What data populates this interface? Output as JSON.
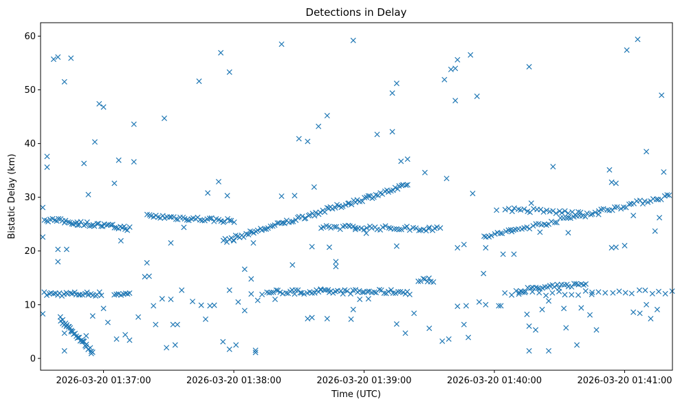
{
  "chart_data": {
    "type": "scatter",
    "title": "Detections in Delay",
    "xlabel": "Time (UTC)",
    "ylabel": "Bistatic Delay (km)",
    "marker": "x",
    "color": "#1f77b4",
    "xlim_seconds": [
      -29,
      262
    ],
    "ylim": [
      -2.2,
      62.5
    ],
    "x_ticks": [
      {
        "t": 0,
        "label": "2026-03-20 01:37:00"
      },
      {
        "t": 60,
        "label": "2026-03-20 01:38:00"
      },
      {
        "t": 120,
        "label": "2026-03-20 01:39:00"
      },
      {
        "t": 180,
        "label": "2026-03-20 01:40:00"
      },
      {
        "t": 240,
        "label": "2026-03-20 01:41:00"
      }
    ],
    "y_ticks": [
      0,
      10,
      20,
      30,
      40,
      50,
      60
    ],
    "x_unit": "seconds after 2026-03-20 01:37:00 UTC",
    "trend_segments": [
      {
        "name": "track-near-12km-a",
        "t0": -27,
        "t1": -1,
        "y0": 12.0,
        "y1": 12.0,
        "n": 28
      },
      {
        "name": "track-near-12km-b",
        "t0": 5,
        "t1": 12,
        "y0": 12.0,
        "y1": 12.0,
        "n": 8
      },
      {
        "name": "track-near-12km-c",
        "t0": 75,
        "t1": 140,
        "y0": 12.4,
        "y1": 12.4,
        "n": 60
      },
      {
        "name": "track-near-12km-d",
        "t0": 185,
        "t1": 262,
        "y0": 12.0,
        "y1": 12.4,
        "n": 26
      },
      {
        "name": "track-rising-13km",
        "t0": 190,
        "t1": 222,
        "y0": 12.6,
        "y1": 13.9,
        "n": 30
      },
      {
        "name": "track-14km",
        "t0": 145,
        "t1": 152,
        "y0": 14.6,
        "y1": 14.6,
        "n": 8
      },
      {
        "name": "track-falling",
        "t0": -20,
        "t1": -5,
        "y0": 7.4,
        "y1": 1.1,
        "n": 34
      },
      {
        "name": "track-26km-a",
        "t0": -27,
        "t1": 12,
        "y0": 25.9,
        "y1": 24.2,
        "n": 45
      },
      {
        "name": "track-26km-b",
        "t0": 20,
        "t1": 60,
        "y0": 26.5,
        "y1": 25.6,
        "n": 40
      },
      {
        "name": "track-rising-main",
        "t0": 55,
        "t1": 140,
        "y0": 21.8,
        "y1": 32.2,
        "n": 90
      },
      {
        "name": "track-24km",
        "t0": 100,
        "t1": 155,
        "y0": 24.5,
        "y1": 24.1,
        "n": 45
      },
      {
        "name": "track-rising-late",
        "t0": 175,
        "t1": 262,
        "y0": 22.6,
        "y1": 30.4,
        "n": 70
      },
      {
        "name": "track-27km",
        "t0": 185,
        "t1": 220,
        "y0": 27.8,
        "y1": 27.0,
        "n": 25
      }
    ],
    "scattered_points": [
      [
        -28,
        8.3
      ],
      [
        -28,
        22.6
      ],
      [
        -28,
        28.1
      ],
      [
        -26,
        37.6
      ],
      [
        -26,
        35.6
      ],
      [
        -23,
        55.7
      ],
      [
        -21,
        56.1
      ],
      [
        -18,
        51.5
      ],
      [
        -15,
        55.9
      ],
      [
        -21,
        20.3
      ],
      [
        -21,
        18.0
      ],
      [
        -18,
        4.7
      ],
      [
        -18,
        1.4
      ],
      [
        -9,
        36.3
      ],
      [
        -7,
        30.5
      ],
      [
        -4,
        40.3
      ],
      [
        -2,
        47.4
      ],
      [
        0,
        46.8
      ],
      [
        5,
        32.6
      ],
      [
        7,
        36.9
      ],
      [
        14,
        43.6
      ],
      [
        14,
        36.6
      ],
      [
        16,
        7.7
      ],
      [
        19,
        15.2
      ],
      [
        20,
        17.8
      ],
      [
        28,
        44.7
      ],
      [
        29,
        2.0
      ],
      [
        33,
        2.5
      ],
      [
        44,
        51.6
      ],
      [
        48,
        30.8
      ],
      [
        53,
        32.9
      ],
      [
        54,
        56.9
      ],
      [
        58,
        53.3
      ],
      [
        57,
        30.3
      ],
      [
        58,
        12.7
      ],
      [
        55,
        3.1
      ],
      [
        58,
        1.7
      ],
      [
        61,
        2.5
      ],
      [
        65,
        16.6
      ],
      [
        68,
        14.8
      ],
      [
        70,
        1.5
      ],
      [
        70,
        1.1
      ],
      [
        82,
        58.5
      ],
      [
        82,
        30.2
      ],
      [
        87,
        17.4
      ],
      [
        90,
        40.9
      ],
      [
        94,
        40.4
      ],
      [
        99,
        43.2
      ],
      [
        97,
        31.9
      ],
      [
        103,
        45.2
      ],
      [
        104,
        20.7
      ],
      [
        107,
        17.1
      ],
      [
        115,
        59.2
      ],
      [
        126,
        41.7
      ],
      [
        133,
        42.2
      ],
      [
        133,
        49.4
      ],
      [
        135,
        51.2
      ],
      [
        137,
        36.7
      ],
      [
        140,
        37.1
      ],
      [
        143,
        8.4
      ],
      [
        148,
        34.6
      ],
      [
        156,
        3.2
      ],
      [
        159,
        3.6
      ],
      [
        160,
        53.8
      ],
      [
        162,
        54.0
      ],
      [
        163,
        55.6
      ],
      [
        169,
        56.5
      ],
      [
        157,
        51.9
      ],
      [
        158,
        33.5
      ],
      [
        162,
        48.0
      ],
      [
        166,
        6.3
      ],
      [
        168,
        3.9
      ],
      [
        172,
        48.8
      ],
      [
        175,
        15.8
      ],
      [
        182,
        9.8
      ],
      [
        184,
        19.4
      ],
      [
        188,
        23.6
      ],
      [
        196,
        54.3
      ],
      [
        196,
        1.4
      ],
      [
        205,
        1.4
      ],
      [
        207,
        35.7
      ],
      [
        213,
        5.7
      ],
      [
        218,
        2.5
      ],
      [
        224,
        8.1
      ],
      [
        227,
        5.3
      ],
      [
        233,
        35.1
      ],
      [
        234,
        32.8
      ],
      [
        236,
        32.6
      ],
      [
        241,
        57.4
      ],
      [
        246,
        59.4
      ],
      [
        250,
        38.5
      ],
      [
        252,
        7.4
      ],
      [
        255,
        9.1
      ],
      [
        257,
        49.0
      ],
      [
        258,
        34.7
      ],
      [
        236,
        20.7
      ],
      [
        240,
        21.0
      ],
      [
        247,
        8.4
      ],
      [
        250,
        10.0
      ],
      [
        -8,
        4.2
      ],
      [
        -5,
        7.9
      ],
      [
        0,
        9.3
      ],
      [
        2,
        6.7
      ],
      [
        6,
        3.6
      ],
      [
        10,
        4.4
      ],
      [
        12,
        3.4
      ],
      [
        23,
        9.8
      ],
      [
        24,
        6.3
      ],
      [
        27,
        11.1
      ],
      [
        31,
        11.0
      ],
      [
        32,
        6.3
      ],
      [
        34,
        6.3
      ],
      [
        36,
        12.7
      ],
      [
        41,
        10.6
      ],
      [
        45,
        9.9
      ],
      [
        47,
        7.3
      ],
      [
        49,
        9.8
      ],
      [
        62,
        10.5
      ],
      [
        65,
        8.9
      ],
      [
        68,
        12.0
      ],
      [
        71,
        10.8
      ],
      [
        73,
        11.9
      ],
      [
        79,
        11.0
      ],
      [
        88,
        12.0
      ],
      [
        94,
        7.4
      ],
      [
        96,
        7.6
      ],
      [
        103,
        7.4
      ],
      [
        104,
        12.3
      ],
      [
        114,
        7.3
      ],
      [
        115,
        9.1
      ],
      [
        118,
        11.0
      ],
      [
        122,
        11.1
      ],
      [
        135,
        6.4
      ],
      [
        139,
        4.7
      ],
      [
        150,
        5.6
      ],
      [
        163,
        9.7
      ],
      [
        167,
        9.8
      ],
      [
        173,
        10.5
      ],
      [
        176,
        10.0
      ],
      [
        183,
        9.8
      ],
      [
        195,
        8.2
      ],
      [
        196,
        6.0
      ],
      [
        199,
        5.3
      ],
      [
        202,
        9.1
      ],
      [
        205,
        10.7
      ],
      [
        212,
        9.3
      ],
      [
        220,
        9.4
      ],
      [
        225,
        12.3
      ],
      [
        244,
        8.6
      ],
      [
        -17,
        20.3
      ],
      [
        -12,
        24.8
      ],
      [
        8,
        21.9
      ],
      [
        21,
        15.3
      ],
      [
        31,
        21.5
      ],
      [
        37,
        24.4
      ],
      [
        51,
        9.9
      ],
      [
        60,
        21.9
      ],
      [
        69,
        21.5
      ],
      [
        88,
        30.3
      ],
      [
        96,
        20.8
      ],
      [
        107,
        18.0
      ],
      [
        116,
        24.0
      ],
      [
        121,
        23.3
      ],
      [
        135,
        20.9
      ],
      [
        150,
        24.4
      ],
      [
        163,
        20.6
      ],
      [
        166,
        21.2
      ],
      [
        170,
        30.7
      ],
      [
        176,
        20.6
      ],
      [
        181,
        27.6
      ],
      [
        189,
        19.4
      ],
      [
        197,
        28.9
      ],
      [
        201,
        23.5
      ],
      [
        214,
        23.4
      ],
      [
        228,
        26.8
      ],
      [
        234,
        20.6
      ],
      [
        244,
        26.6
      ],
      [
        256,
        26.2
      ],
      [
        254,
        23.7
      ],
      [
        100,
        12.9
      ],
      [
        141,
        11.9
      ]
    ]
  }
}
